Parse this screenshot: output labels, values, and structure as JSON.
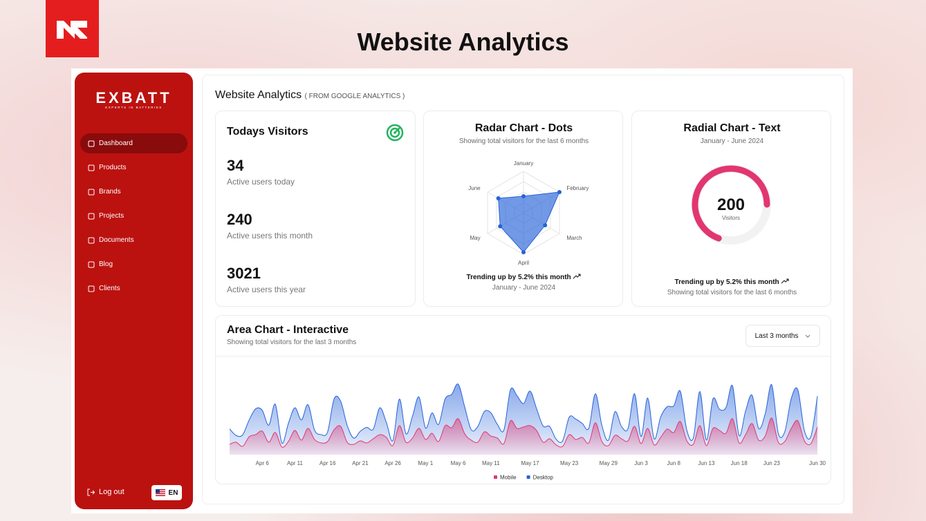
{
  "header": {
    "title": "Website Analytics"
  },
  "sidebar": {
    "brand": "EXBATT",
    "tagline": "EXPERTS IN BATTERIES",
    "nav": [
      "Dashboard",
      "Products",
      "Brands",
      "Projects",
      "Documents",
      "Blog",
      "Clients"
    ],
    "logout": "Log out",
    "language": "EN"
  },
  "main": {
    "title": "Website Analytics",
    "subtitle": "( FROM GOOGLE ANALYTICS )"
  },
  "visitors": {
    "title": "Todays Visitors",
    "stats": [
      {
        "value": 34,
        "label": "Active users today"
      },
      {
        "value": 240,
        "label": "Active users this month"
      },
      {
        "value": 3021,
        "label": "Active users this year"
      }
    ]
  },
  "chart_data": [
    {
      "type": "radar",
      "title": "Radar Chart - Dots",
      "subtitle": "Showing total visitors for the last 6 months",
      "categories": [
        "January",
        "February",
        "March",
        "April",
        "May",
        "June"
      ],
      "values": [
        80,
        200,
        120,
        190,
        130,
        140
      ],
      "rlim": [
        0,
        200
      ],
      "color": "#2662d9",
      "footer": "Trending up by 5.2% this month",
      "footer_note": "January - June 2024"
    },
    {
      "type": "radial",
      "title": "Radial Chart - Text",
      "subtitle": "January - June 2024",
      "value": 200,
      "unit": "Visitors",
      "rlim": [
        0,
        288
      ],
      "color": "#e23670",
      "footer": "Trending up by 5.2% this month",
      "footer_note": "Showing total visitors for the last 6 months"
    },
    {
      "type": "area",
      "title": "Area Chart - Interactive",
      "subtitle": "Showing total visitors for the last 3 months",
      "range_selector": "Last 3 months",
      "stacked": true,
      "categories": [
        null,
        null,
        null,
        null,
        null,
        "Apr 6",
        null,
        null,
        null,
        null,
        "Apr 11",
        null,
        null,
        null,
        null,
        "Apr 16",
        null,
        null,
        null,
        null,
        "Apr 21",
        null,
        null,
        null,
        null,
        "Apr 26",
        null,
        null,
        null,
        null,
        "May 1",
        null,
        null,
        null,
        null,
        "May 6",
        null,
        null,
        null,
        null,
        "May 11",
        null,
        null,
        null,
        null,
        null,
        "May 17",
        null,
        null,
        null,
        null,
        null,
        "May 23",
        null,
        null,
        null,
        null,
        null,
        "May 29",
        null,
        null,
        null,
        null,
        "Jun 3",
        null,
        null,
        null,
        null,
        "Jun 8",
        null,
        null,
        null,
        null,
        "Jun 13",
        null,
        null,
        null,
        null,
        "Jun 18",
        null,
        null,
        null,
        null,
        "Jun 23",
        null,
        null,
        null,
        null,
        null,
        null,
        "Jun 30"
      ],
      "series": [
        {
          "name": "Mobile",
          "color": "#e23670",
          "values": [
            150,
            180,
            120,
            260,
            290,
            340,
            180,
            320,
            110,
            190,
            350,
            210,
            380,
            220,
            170,
            190,
            360,
            410,
            180,
            150,
            200,
            170,
            230,
            290,
            250,
            130,
            420,
            180,
            240,
            380,
            220,
            310,
            190,
            420,
            390,
            520,
            300,
            210,
            180,
            330,
            270,
            240,
            160,
            490,
            380,
            400,
            420,
            350,
            180,
            230,
            140,
            120,
            290,
            220,
            250,
            170,
            460,
            190,
            130,
            280,
            230,
            200,
            410,
            160,
            380,
            140,
            250,
            370,
            320,
            480,
            200,
            150,
            420,
            130,
            380,
            350,
            310,
            520,
            170,
            290,
            450,
            210,
            270,
            530,
            180,
            190,
            380,
            490,
            200,
            160,
            400
          ]
        },
        {
          "name": "Desktop",
          "color": "#2662d9",
          "values": [
            222,
            97,
            167,
            242,
            373,
            301,
            245,
            409,
            59,
            261,
            327,
            292,
            342,
            137,
            120,
            138,
            446,
            364,
            243,
            89,
            137,
            224,
            138,
            387,
            215,
            75,
            383,
            122,
            315,
            454,
            165,
            293,
            247,
            385,
            481,
            498,
            388,
            149,
            227,
            293,
            335,
            197,
            197,
            448,
            473,
            338,
            499,
            315,
            235,
            177,
            82,
            81,
            252,
            294,
            201,
            213,
            420,
            233,
            78,
            340,
            178,
            178,
            470,
            103,
            439,
            88,
            294,
            323,
            385,
            438,
            155,
            92,
            492,
            81,
            426,
            307,
            371,
            475,
            107,
            341,
            408,
            169,
            317,
            480,
            132,
            141,
            434,
            448,
            149,
            103,
            446
          ]
        }
      ]
    }
  ]
}
